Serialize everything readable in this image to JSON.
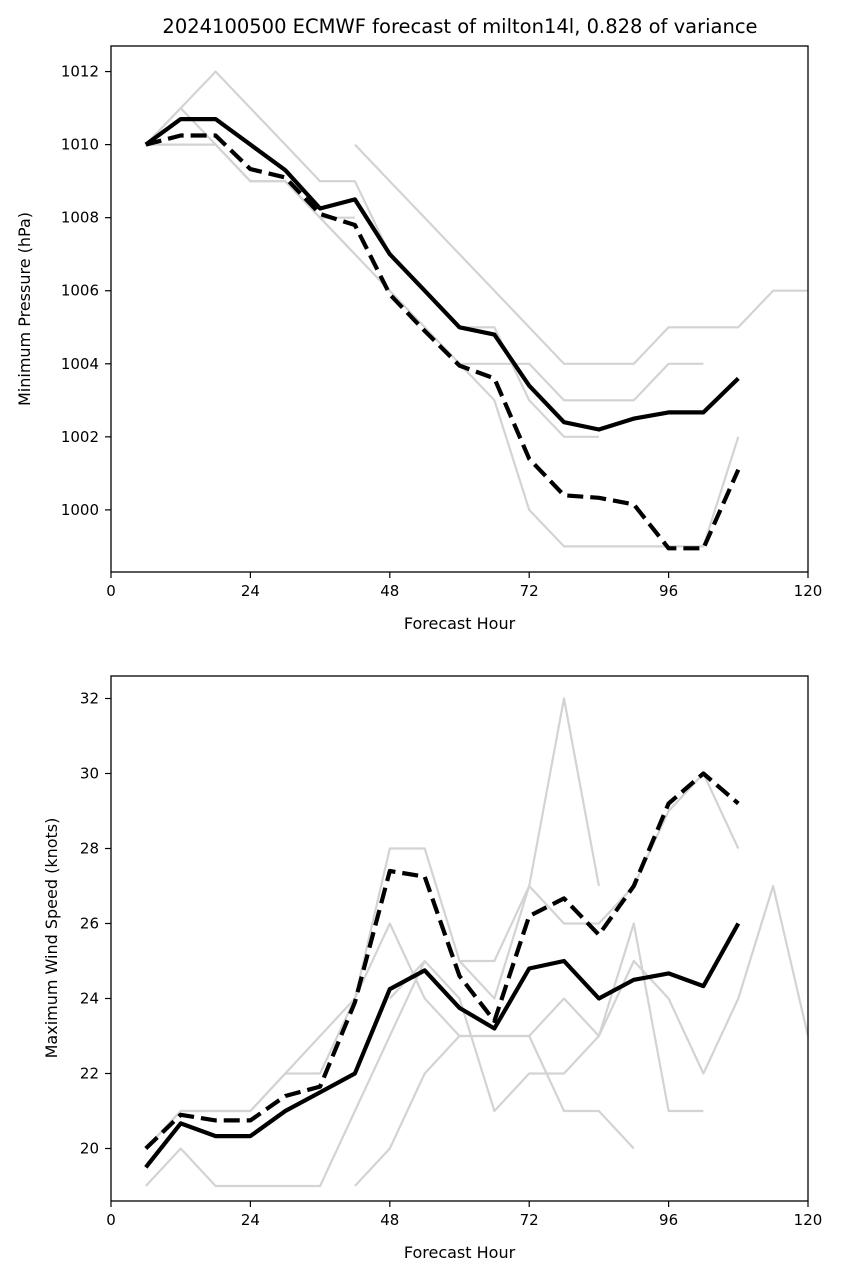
{
  "figure": {
    "title": "2024100500 ECMWF forecast of milton14l, 0.828 of variance"
  },
  "colors": {
    "member": "#d3d3d3",
    "mean": "#000000",
    "alt": "#000000",
    "axes": "#000000"
  },
  "chart_data": [
    {
      "type": "line",
      "xlabel": "Forecast Hour",
      "ylabel": "Minimum Pressure (hPa)",
      "xlim": [
        0,
        120
      ],
      "ylim": [
        998.3,
        1012.7
      ],
      "xticks": [
        0,
        24,
        48,
        72,
        96,
        120
      ],
      "yticks": [
        1000,
        1002,
        1004,
        1006,
        1008,
        1010,
        1012
      ],
      "grid": false,
      "members": [
        {
          "x": [
            6,
            12,
            18,
            24,
            30,
            36,
            42
          ],
          "y": [
            1010,
            1011,
            1010,
            1009,
            1009,
            1008,
            1007
          ]
        },
        {
          "x": [
            6,
            12,
            18,
            24,
            30,
            36,
            42
          ],
          "y": [
            1010,
            1010,
            1010,
            1009,
            1009,
            1008,
            1008
          ]
        },
        {
          "x": [
            6,
            12,
            18,
            24,
            30,
            36,
            42,
            48,
            54,
            60,
            66,
            72,
            78,
            84
          ],
          "y": [
            1010,
            1011,
            1012,
            1011,
            1010,
            1009,
            1009,
            1007,
            1006,
            1005,
            1005,
            1003,
            1002,
            1002
          ]
        },
        {
          "x": [
            42,
            48,
            54,
            60,
            66,
            72,
            78,
            84,
            90,
            96,
            102,
            108,
            114,
            120
          ],
          "y": [
            1010,
            1009,
            1008,
            1007,
            1006,
            1005,
            1004,
            1004,
            1004,
            1005,
            1005,
            1005,
            1006,
            1006
          ]
        },
        {
          "x": [
            60,
            66,
            72,
            78,
            84,
            90,
            96,
            102
          ],
          "y": [
            1004,
            1004,
            1004,
            1003,
            1003,
            1003,
            1004,
            1004
          ]
        },
        {
          "x": [
            36,
            42,
            48,
            54,
            60,
            66,
            72,
            78,
            84,
            90,
            96,
            102,
            108
          ],
          "y": [
            1008,
            1007,
            1006,
            1005,
            1004,
            1003,
            1000,
            999,
            999,
            999,
            999,
            999,
            1002
          ]
        }
      ],
      "series": [
        {
          "style": "solid",
          "x": [
            6,
            12,
            18,
            24,
            30,
            36,
            42,
            48,
            54,
            60,
            66,
            72,
            78,
            84,
            90,
            96,
            102,
            108
          ],
          "y": [
            1010.0,
            1010.7,
            1010.7,
            1010.0,
            1009.3,
            1008.25,
            1008.5,
            1007.0,
            1006.0,
            1005.0,
            1004.8,
            1003.4,
            1002.4,
            1002.2,
            1002.5,
            1002.67,
            1002.67,
            1003.6
          ]
        },
        {
          "style": "dashed",
          "x": [
            6,
            12,
            18,
            24,
            30,
            36,
            42,
            48,
            54,
            60,
            66,
            72,
            78,
            84,
            90,
            96,
            102,
            108
          ],
          "y": [
            1010.0,
            1010.25,
            1010.25,
            1009.33,
            1009.1,
            1008.1,
            1007.8,
            1005.9,
            1004.9,
            1003.95,
            1003.6,
            1001.4,
            1000.4,
            1000.33,
            1000.15,
            998.95,
            998.95,
            1001.1
          ]
        }
      ]
    },
    {
      "type": "line",
      "xlabel": "Forecast Hour",
      "ylabel": "Maximum Wind Speed (knots)",
      "xlim": [
        0,
        120
      ],
      "ylim": [
        18.6,
        32.6
      ],
      "xticks": [
        0,
        24,
        48,
        72,
        96,
        120
      ],
      "yticks": [
        20,
        22,
        24,
        26,
        28,
        30,
        32
      ],
      "grid": false,
      "members": [
        {
          "x": [
            6,
            12,
            18,
            24,
            30,
            36,
            42,
            48,
            54
          ],
          "y": [
            19,
            20,
            19,
            19,
            19,
            19,
            21,
            23,
            25
          ]
        },
        {
          "x": [
            6,
            12,
            18,
            24,
            30,
            36,
            42,
            48,
            54,
            60,
            66,
            72,
            78,
            84
          ],
          "y": [
            20,
            21,
            21,
            21,
            22,
            22,
            24,
            28,
            28,
            25,
            24,
            27,
            32,
            27
          ]
        },
        {
          "x": [
            6,
            12,
            18,
            24,
            30,
            36,
            42,
            48,
            54,
            60,
            66,
            72,
            78,
            84,
            90
          ],
          "y": [
            20,
            21,
            21,
            21,
            22,
            23,
            24,
            26,
            24,
            23,
            23,
            23,
            21,
            21,
            20
          ]
        },
        {
          "x": [
            42,
            48,
            54,
            60,
            66,
            72,
            78,
            84,
            90,
            96,
            102,
            108,
            114,
            120
          ],
          "y": [
            19,
            20,
            22,
            23,
            23,
            23,
            24,
            23,
            25,
            24,
            22,
            24,
            27,
            23
          ]
        },
        {
          "x": [
            48,
            54,
            60,
            66,
            72,
            78,
            84,
            90,
            96,
            102
          ],
          "y": [
            24,
            25,
            24,
            21,
            22,
            22,
            23,
            26,
            21,
            21
          ]
        },
        {
          "x": [
            60,
            66,
            72,
            78,
            84,
            90,
            96,
            102,
            108
          ],
          "y": [
            25,
            25,
            27,
            26,
            26,
            27,
            29,
            30,
            28
          ]
        }
      ],
      "series": [
        {
          "style": "solid",
          "x": [
            6,
            12,
            18,
            24,
            30,
            36,
            42,
            48,
            54,
            60,
            66,
            72,
            78,
            84,
            90,
            96,
            102,
            108
          ],
          "y": [
            19.5,
            20.67,
            20.33,
            20.33,
            21.0,
            21.5,
            22.0,
            24.25,
            24.75,
            23.75,
            23.2,
            24.8,
            25.0,
            24.0,
            24.5,
            24.67,
            24.33,
            26.0
          ]
        },
        {
          "style": "dashed",
          "x": [
            6,
            12,
            18,
            24,
            30,
            36,
            42,
            48,
            54,
            60,
            66,
            72,
            78,
            84,
            90,
            96,
            102,
            108
          ],
          "y": [
            20.0,
            20.9,
            20.75,
            20.75,
            21.4,
            21.65,
            23.9,
            27.4,
            27.25,
            24.6,
            23.4,
            26.2,
            26.67,
            25.7,
            27.0,
            29.2,
            30.0,
            29.2
          ]
        }
      ]
    }
  ]
}
